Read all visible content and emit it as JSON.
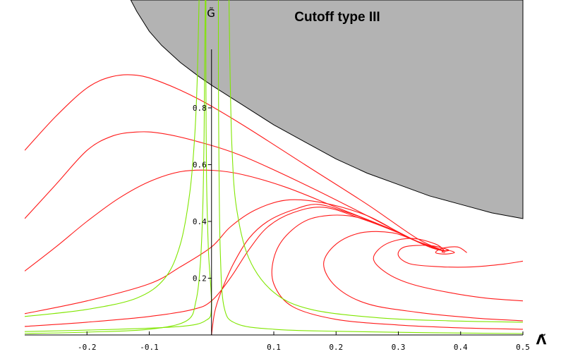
{
  "chart_data": {
    "type": "line",
    "title": "Cutoff type III",
    "xlabel": "Λ̃",
    "ylabel": "G̃",
    "xlim": [
      -0.3,
      0.5
    ],
    "ylim": [
      0,
      1.18
    ],
    "grid": false,
    "legend": "none",
    "x_ticks": [
      {
        "value": -0.2,
        "label": "-0.2"
      },
      {
        "value": -0.1,
        "label": "-0.1"
      },
      {
        "value": 0.1,
        "label": "0.1"
      },
      {
        "value": 0.2,
        "label": "0.2"
      },
      {
        "value": 0.3,
        "label": "0.3"
      },
      {
        "value": 0.4,
        "label": "0.4"
      },
      {
        "value": 0.5,
        "label": "0.5"
      }
    ],
    "y_ticks": [
      {
        "value": 0.2,
        "label": "0.2"
      },
      {
        "value": 0.4,
        "label": "0.4"
      },
      {
        "value": 0.6,
        "label": "0.6"
      },
      {
        "value": 0.8,
        "label": "0.8"
      }
    ],
    "colors": {
      "forbidden_region": "#b3b3b3",
      "flow_lines": "#ff1a1a",
      "separatrices": "#80e600",
      "axes": "#000000"
    },
    "forbidden_region_boundary": [
      [
        -0.1297,
        1.18
      ],
      [
        -0.12,
        1.14
      ],
      [
        -0.1,
        1.07
      ],
      [
        -0.08,
        1.02
      ],
      [
        -0.05,
        0.96
      ],
      [
        -0.02,
        0.91
      ],
      [
        0.0,
        0.88
      ],
      [
        0.05,
        0.81
      ],
      [
        0.1,
        0.74
      ],
      [
        0.15,
        0.68
      ],
      [
        0.2,
        0.62
      ],
      [
        0.25,
        0.57
      ],
      [
        0.3,
        0.53
      ],
      [
        0.35,
        0.49
      ],
      [
        0.4,
        0.46
      ],
      [
        0.45,
        0.43
      ],
      [
        0.5,
        0.41
      ]
    ],
    "fixed_point": {
      "x": 0.375,
      "y": 0.29
    },
    "series": [
      {
        "color": "#ff1a1a",
        "points": [
          [
            -0.3,
            0.65
          ],
          [
            -0.25,
            0.77
          ],
          [
            -0.2,
            0.87
          ],
          [
            -0.16,
            0.91
          ],
          [
            -0.12,
            0.915
          ],
          [
            -0.08,
            0.89
          ],
          [
            -0.02,
            0.83
          ],
          [
            0.05,
            0.74
          ],
          [
            0.15,
            0.6
          ],
          [
            0.25,
            0.46
          ],
          [
            0.33,
            0.34
          ],
          [
            0.375,
            0.295
          ]
        ]
      },
      {
        "color": "#ff1a1a",
        "points": [
          [
            -0.3,
            0.41
          ],
          [
            -0.25,
            0.53
          ],
          [
            -0.2,
            0.65
          ],
          [
            -0.16,
            0.7
          ],
          [
            -0.12,
            0.715
          ],
          [
            -0.08,
            0.71
          ],
          [
            -0.02,
            0.68
          ],
          [
            0.05,
            0.63
          ],
          [
            0.15,
            0.53
          ],
          [
            0.25,
            0.42
          ],
          [
            0.33,
            0.33
          ],
          [
            0.375,
            0.295
          ]
        ]
      },
      {
        "color": "#ff1a1a",
        "points": [
          [
            -0.3,
            0.225
          ],
          [
            -0.25,
            0.31
          ],
          [
            -0.2,
            0.4
          ],
          [
            -0.15,
            0.48
          ],
          [
            -0.1,
            0.54
          ],
          [
            -0.05,
            0.575
          ],
          [
            0.0,
            0.58
          ],
          [
            0.05,
            0.565
          ],
          [
            0.12,
            0.52
          ],
          [
            0.2,
            0.45
          ],
          [
            0.28,
            0.38
          ],
          [
            0.34,
            0.32
          ],
          [
            0.375,
            0.295
          ]
        ]
      },
      {
        "color": "#ff1a1a",
        "points": [
          [
            -0.3,
            0.075
          ],
          [
            -0.2,
            0.12
          ],
          [
            -0.1,
            0.18
          ],
          [
            -0.05,
            0.24
          ],
          [
            0.0,
            0.31
          ],
          [
            0.03,
            0.38
          ],
          [
            0.07,
            0.44
          ],
          [
            0.12,
            0.475
          ],
          [
            0.18,
            0.465
          ],
          [
            0.25,
            0.42
          ],
          [
            0.31,
            0.35
          ],
          [
            0.35,
            0.31
          ],
          [
            0.375,
            0.295
          ]
        ]
      },
      {
        "color": "#ff1a1a",
        "points": [
          [
            -0.3,
            0.03
          ],
          [
            -0.2,
            0.045
          ],
          [
            -0.1,
            0.065
          ],
          [
            -0.03,
            0.09
          ],
          [
            0.0,
            0.12
          ],
          [
            0.03,
            0.2
          ],
          [
            0.06,
            0.3
          ],
          [
            0.09,
            0.38
          ],
          [
            0.13,
            0.43
          ],
          [
            0.18,
            0.45
          ],
          [
            0.24,
            0.41
          ],
          [
            0.3,
            0.36
          ],
          [
            0.35,
            0.31
          ],
          [
            0.375,
            0.295
          ]
        ]
      },
      {
        "color": "#ff1a1a",
        "points": [
          [
            0.0,
            0.0
          ],
          [
            0.005,
            0.08
          ],
          [
            0.015,
            0.15
          ],
          [
            0.035,
            0.25
          ],
          [
            0.06,
            0.34
          ],
          [
            0.09,
            0.4
          ],
          [
            0.13,
            0.44
          ],
          [
            0.17,
            0.46
          ],
          [
            0.22,
            0.43
          ],
          [
            0.28,
            0.38
          ],
          [
            0.33,
            0.33
          ],
          [
            0.375,
            0.295
          ]
        ]
      },
      {
        "color": "#ff1a1a",
        "points": [
          [
            0.5,
            0.02
          ],
          [
            0.4,
            0.025
          ],
          [
            0.3,
            0.035
          ],
          [
            0.2,
            0.055
          ],
          [
            0.13,
            0.1
          ],
          [
            0.1,
            0.18
          ],
          [
            0.1,
            0.27
          ],
          [
            0.12,
            0.35
          ],
          [
            0.16,
            0.41
          ],
          [
            0.22,
            0.42
          ],
          [
            0.28,
            0.38
          ],
          [
            0.33,
            0.33
          ],
          [
            0.375,
            0.295
          ]
        ]
      },
      {
        "color": "#ff1a1a",
        "points": [
          [
            0.5,
            0.05
          ],
          [
            0.42,
            0.06
          ],
          [
            0.33,
            0.08
          ],
          [
            0.25,
            0.11
          ],
          [
            0.2,
            0.17
          ],
          [
            0.18,
            0.25
          ],
          [
            0.2,
            0.32
          ],
          [
            0.24,
            0.36
          ],
          [
            0.29,
            0.36
          ],
          [
            0.33,
            0.33
          ],
          [
            0.375,
            0.295
          ]
        ]
      },
      {
        "color": "#ff1a1a",
        "points": [
          [
            0.5,
            0.12
          ],
          [
            0.44,
            0.13
          ],
          [
            0.38,
            0.15
          ],
          [
            0.32,
            0.18
          ],
          [
            0.28,
            0.22
          ],
          [
            0.26,
            0.27
          ],
          [
            0.28,
            0.32
          ],
          [
            0.32,
            0.34
          ],
          [
            0.36,
            0.32
          ],
          [
            0.375,
            0.295
          ]
        ]
      },
      {
        "color": "#ff1a1a",
        "points": [
          [
            0.5,
            0.26
          ],
          [
            0.47,
            0.25
          ],
          [
            0.42,
            0.24
          ],
          [
            0.37,
            0.24
          ],
          [
            0.32,
            0.25
          ],
          [
            0.3,
            0.28
          ],
          [
            0.31,
            0.31
          ],
          [
            0.35,
            0.315
          ],
          [
            0.38,
            0.3
          ],
          [
            0.375,
            0.295
          ]
        ]
      },
      {
        "color": "#ff1a1a",
        "points": [
          [
            0.41,
            0.29
          ],
          [
            0.395,
            0.31
          ],
          [
            0.37,
            0.305
          ],
          [
            0.36,
            0.29
          ],
          [
            0.375,
            0.285
          ],
          [
            0.39,
            0.29
          ],
          [
            0.38,
            0.298
          ],
          [
            0.37,
            0.293
          ],
          [
            0.375,
            0.29
          ]
        ]
      },
      {
        "color": "#80e600",
        "points": [
          [
            -0.3,
            0.005
          ],
          [
            -0.2,
            0.01
          ],
          [
            -0.1,
            0.02
          ],
          [
            -0.04,
            0.05
          ],
          [
            -0.025,
            0.12
          ],
          [
            -0.018,
            0.25
          ],
          [
            -0.014,
            0.45
          ],
          [
            -0.012,
            0.7
          ],
          [
            -0.011,
            0.95
          ],
          [
            -0.01,
            1.18
          ]
        ]
      },
      {
        "color": "#80e600",
        "points": [
          [
            -0.3,
            0.065
          ],
          [
            -0.2,
            0.09
          ],
          [
            -0.12,
            0.13
          ],
          [
            -0.075,
            0.2
          ],
          [
            -0.05,
            0.32
          ],
          [
            -0.035,
            0.5
          ],
          [
            -0.027,
            0.7
          ],
          [
            -0.023,
            0.9
          ],
          [
            -0.02,
            1.18
          ]
        ]
      },
      {
        "color": "#80e600",
        "points": [
          [
            -0.3,
            0.012
          ],
          [
            -0.15,
            0.02
          ],
          [
            -0.05,
            0.03
          ],
          [
            -0.01,
            0.05
          ],
          [
            0.0,
            0.1
          ],
          [
            -0.005,
            0.3
          ],
          [
            -0.008,
            0.55
          ],
          [
            -0.009,
            0.9
          ],
          [
            -0.009,
            1.18
          ]
        ]
      },
      {
        "color": "#80e600",
        "points": [
          [
            0.5,
            0.005
          ],
          [
            0.35,
            0.008
          ],
          [
            0.2,
            0.013
          ],
          [
            0.1,
            0.02
          ],
          [
            0.04,
            0.04
          ],
          [
            0.02,
            0.1
          ],
          [
            0.014,
            0.3
          ],
          [
            0.012,
            0.6
          ],
          [
            0.011,
            0.95
          ],
          [
            0.011,
            1.18
          ]
        ]
      },
      {
        "color": "#80e600",
        "points": [
          [
            0.5,
            0.045
          ],
          [
            0.38,
            0.05
          ],
          [
            0.27,
            0.06
          ],
          [
            0.16,
            0.09
          ],
          [
            0.1,
            0.15
          ],
          [
            0.06,
            0.27
          ],
          [
            0.04,
            0.45
          ],
          [
            0.033,
            0.65
          ],
          [
            0.03,
            0.9
          ],
          [
            0.028,
            1.18
          ]
        ]
      }
    ]
  }
}
